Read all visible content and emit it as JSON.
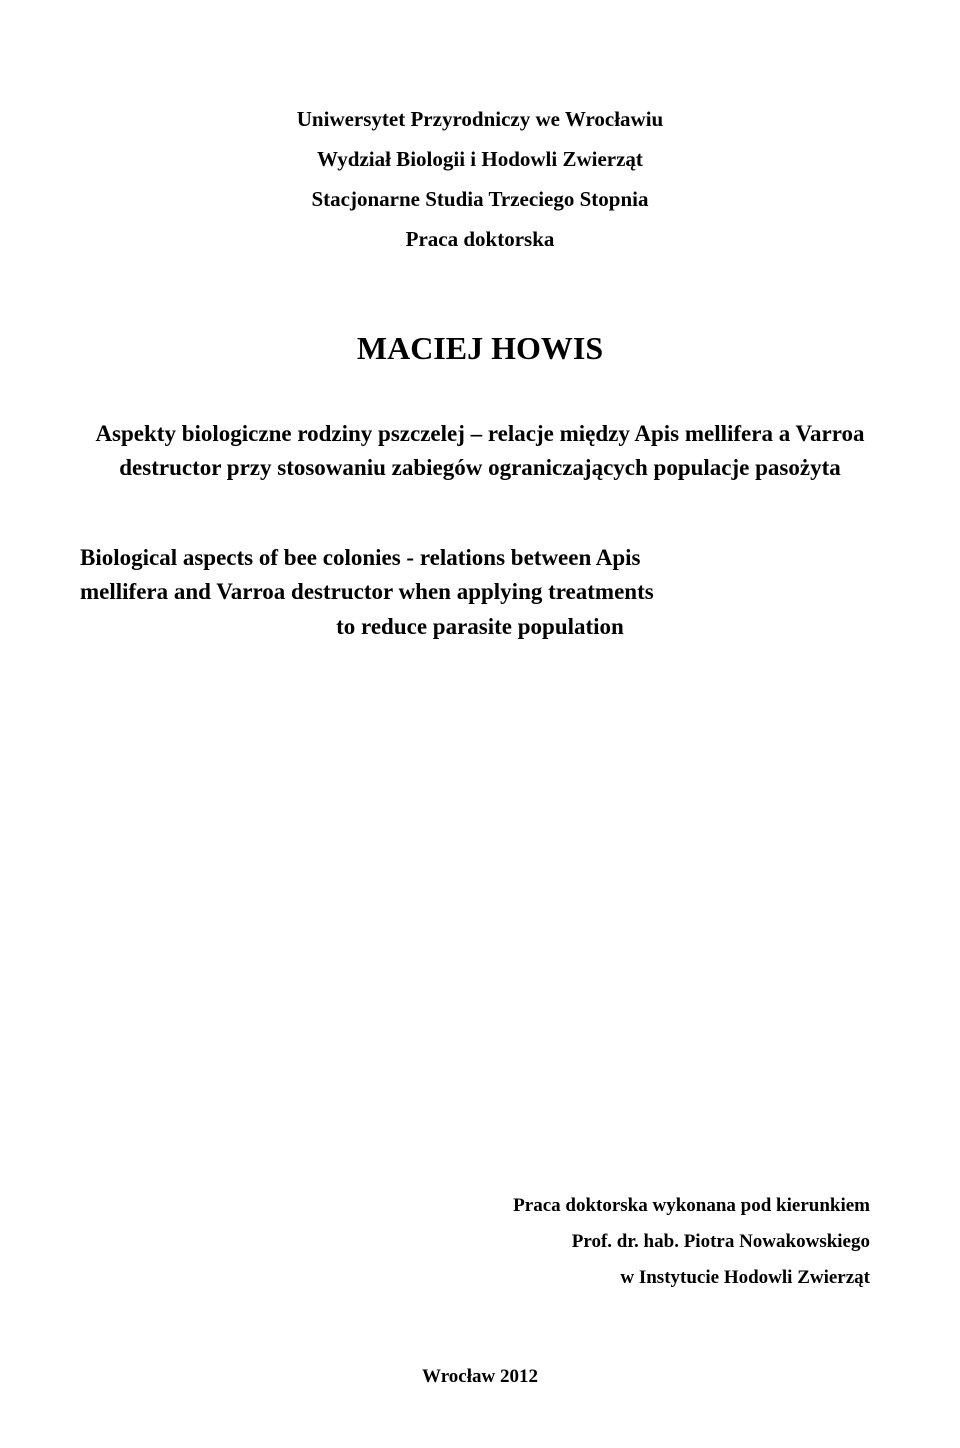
{
  "header": {
    "university": "Uniwersytet Przyrodniczy we Wrocławiu",
    "faculty": "Wydział Biologii i Hodowli Zwierząt",
    "program": "Stacjonarne Studia Trzeciego Stopnia",
    "doc_type": "Praca doktorska"
  },
  "author": "MACIEJ HOWIS",
  "title_pl": "Aspekty biologiczne rodziny pszczelej – relacje między Apis mellifera a Varroa destructor przy stosowaniu zabiegów ograniczających populacje pasożyta",
  "title_en_line1": "Biological aspects of bee colonies - relations between Apis",
  "title_en_line2": "mellifera and Varroa destructor when applying treatments",
  "title_en_line3": "to reduce parasite population",
  "advisor": {
    "line1": "Praca doktorska wykonana pod kierunkiem",
    "line2": "Prof. dr. hab. Piotra Nowakowskiego",
    "line3": "w Instytucie Hodowli Zwierząt"
  },
  "footer": "Wrocław 2012"
}
